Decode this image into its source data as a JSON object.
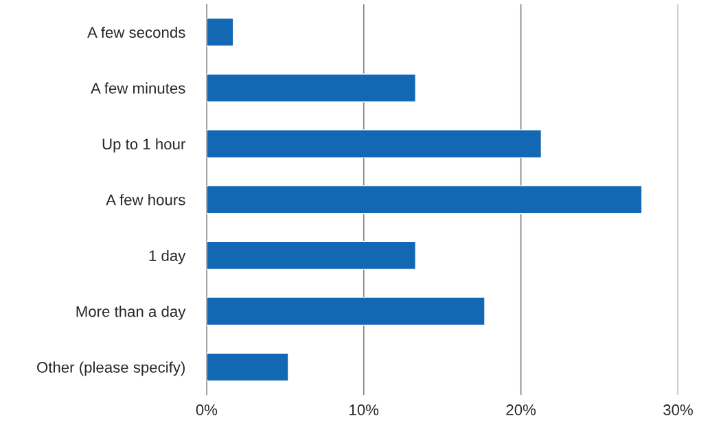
{
  "chart_data": {
    "type": "bar",
    "orientation": "horizontal",
    "categories": [
      "A few seconds",
      "A few minutes",
      "Up to 1 hour",
      "A few hours",
      "1 day",
      "More than a day",
      "Other (please specify)"
    ],
    "values": [
      1.7,
      13.3,
      21.3,
      27.7,
      13.3,
      17.7,
      5.2
    ],
    "color": "#1368b4",
    "xlim": [
      0,
      30
    ],
    "xticks": [
      {
        "value": 0,
        "label": "0%"
      },
      {
        "value": 10,
        "label": "10%"
      },
      {
        "value": 20,
        "label": "20%"
      },
      {
        "value": 30,
        "label": "30%"
      }
    ],
    "grid": "x",
    "legend": false
  }
}
